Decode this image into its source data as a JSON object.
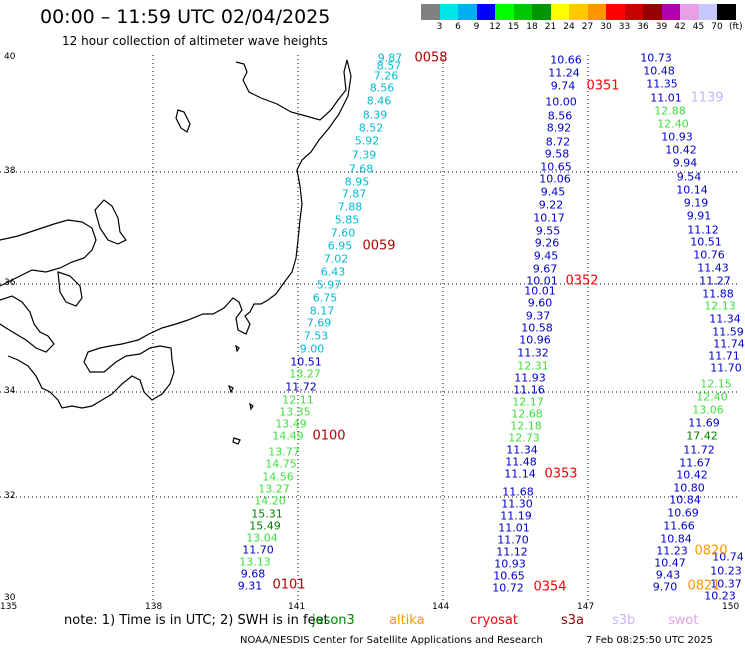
{
  "title": "00:00 – 11:59 UTC 02/04/2025",
  "subtitle": "12 hour collection of altimeter wave heights",
  "colorbar": {
    "colors": [
      "#808080",
      "#00e5e5",
      "#00b0f0",
      "#0000ff",
      "#00ff00",
      "#00c800",
      "#009600",
      "#ffff00",
      "#ffc800",
      "#ff9600",
      "#ff0000",
      "#c80000",
      "#960000",
      "#b000b0",
      "#e6a0e6",
      "#c8c8ff",
      "#000000"
    ],
    "labels": [
      "3",
      "6",
      "9",
      "12",
      "15",
      "18",
      "21",
      "24",
      "27",
      "30",
      "33",
      "36",
      "39",
      "42",
      "45",
      "70"
    ],
    "unit": "(ft)"
  },
  "axes": {
    "x_ticks": [
      "135",
      "138",
      "141",
      "144",
      "147",
      "150"
    ],
    "y_ticks": [
      "40",
      "38",
      "36",
      "34",
      "32",
      "30"
    ]
  },
  "passes": [
    {
      "id": "0058",
      "color": "#00bcd4",
      "points": [
        [
          "9.87",
          390,
          58
        ],
        [
          "8.57",
          389,
          66
        ],
        [
          "7.26",
          386,
          76
        ],
        [
          "8.56",
          382,
          88
        ],
        [
          "8.46",
          379,
          101
        ],
        [
          "8.39",
          375,
          115
        ],
        [
          "8.52",
          371,
          128
        ],
        [
          "5.92",
          367,
          141
        ],
        [
          "7.39",
          364,
          155
        ],
        [
          "7.68",
          361,
          169
        ],
        [
          "8.95",
          357,
          182
        ],
        [
          "7.87",
          354,
          194
        ],
        [
          "7.88",
          350,
          207
        ],
        [
          "5.85",
          347,
          220
        ],
        [
          "7.60",
          343,
          233
        ]
      ]
    },
    {
      "id": "0059",
      "color": "#00bcd4",
      "points": [
        [
          "6.95",
          340,
          246
        ],
        [
          "7.02",
          336,
          259
        ],
        [
          "6.43",
          333,
          272
        ],
        [
          "5.97",
          329,
          285
        ],
        [
          "6.75",
          325,
          298
        ],
        [
          "8.17",
          322,
          311
        ],
        [
          "7.69",
          319,
          323
        ],
        [
          "7.53",
          316,
          336
        ],
        [
          "9.00",
          312,
          349
        ]
      ]
    },
    {
      "id": "0059b",
      "color": "#0000c8",
      "points": [
        [
          "10.51",
          306,
          362
        ]
      ]
    },
    {
      "id": "0100a",
      "color": "#40e040",
      "points": [
        [
          "13.27",
          305,
          374
        ]
      ]
    },
    {
      "id": "0100b",
      "color": "#0000c8",
      "points": [
        [
          "11.72",
          301,
          387
        ]
      ]
    },
    {
      "id": "0100",
      "color": "#40e040",
      "points": [
        [
          "12.11",
          298,
          400
        ],
        [
          "13.35",
          295,
          412
        ],
        [
          "13.49",
          291,
          424
        ],
        [
          "14.49",
          288,
          436
        ],
        [
          "13.77",
          284,
          452
        ],
        [
          "14.75",
          281,
          464
        ],
        [
          "14.56",
          278,
          477
        ],
        [
          "13.27",
          274,
          489
        ],
        [
          "14.20",
          270,
          501
        ]
      ]
    },
    {
      "id": "0101a",
      "color": "#008000",
      "points": [
        [
          "15.31",
          267,
          514
        ],
        [
          "15.49",
          265,
          526
        ]
      ]
    },
    {
      "id": "0101b",
      "color": "#40e040",
      "points": [
        [
          "13.04",
          262,
          538
        ]
      ]
    },
    {
      "id": "0101c",
      "color": "#0000c8",
      "points": [
        [
          "11.70",
          258,
          550
        ]
      ]
    },
    {
      "id": "0101d",
      "color": "#40e040",
      "points": [
        [
          "13.13",
          255,
          562
        ]
      ]
    },
    {
      "id": "0101e",
      "color": "#0000c8",
      "points": [
        [
          "9.68",
          253,
          574
        ],
        [
          "9.31",
          250,
          586
        ]
      ]
    },
    {
      "id": "0351",
      "color": "#0000c8",
      "points": [
        [
          "10.66",
          566,
          60
        ],
        [
          "11.24",
          564,
          73
        ],
        [
          "9.74",
          563,
          86
        ],
        [
          "10.00",
          561,
          102
        ],
        [
          "8.56",
          560,
          116
        ],
        [
          "8.92",
          559,
          128
        ],
        [
          "8.72",
          558,
          142
        ],
        [
          "9.58",
          557,
          154
        ],
        [
          "10.65",
          556,
          167
        ],
        [
          "10.06",
          555,
          179
        ],
        [
          "9.45",
          553,
          192
        ],
        [
          "9.22",
          551,
          205
        ],
        [
          "10.17",
          549,
          218
        ],
        [
          "9.55",
          548,
          231
        ],
        [
          "9.45",
          546,
          256
        ],
        [
          "9.26",
          547,
          243
        ],
        [
          "9.67",
          545,
          269
        ],
        [
          "10.01",
          542,
          281
        ]
      ]
    },
    {
      "id": "0352",
      "color": "#0000c8",
      "points": [
        [
          "10.01",
          540,
          291
        ],
        [
          "9.60",
          540,
          303
        ],
        [
          "9.37",
          538,
          316
        ],
        [
          "10.58",
          537,
          328
        ],
        [
          "10.96",
          535,
          340
        ],
        [
          "11.32",
          533,
          353
        ]
      ]
    },
    {
      "id": "0352g",
      "color": "#40e040",
      "points": [
        [
          "12.31",
          533,
          366
        ]
      ]
    },
    {
      "id": "0352c",
      "color": "#0000c8",
      "points": [
        [
          "11.93",
          530,
          378
        ],
        [
          "11.16",
          529,
          390
        ]
      ]
    },
    {
      "id": "0353g",
      "color": "#40e040",
      "points": [
        [
          "12.17",
          528,
          402
        ],
        [
          "12.68",
          527,
          414
        ],
        [
          "12.18",
          526,
          426
        ],
        [
          "12.73",
          524,
          438
        ]
      ]
    },
    {
      "id": "0353",
      "color": "#0000c8",
      "points": [
        [
          "11.34",
          522,
          450
        ],
        [
          "11.48",
          521,
          462
        ],
        [
          "11.14",
          520,
          474
        ],
        [
          "11.68",
          518,
          492
        ],
        [
          "11.30",
          517,
          504
        ],
        [
          "11.19",
          516,
          516
        ],
        [
          "11.01",
          514,
          528
        ],
        [
          "11.70",
          513,
          540
        ],
        [
          "11.12",
          512,
          552
        ],
        [
          "10.93",
          510,
          564
        ],
        [
          "10.65",
          509,
          576
        ],
        [
          "10.72",
          508,
          588
        ]
      ]
    },
    {
      "id": "1139",
      "color": "#0000c8",
      "points": [
        [
          "10.73",
          656,
          58
        ],
        [
          "10.48",
          659,
          71
        ],
        [
          "11.35",
          662,
          84
        ],
        [
          "11.01",
          666,
          98
        ]
      ]
    },
    {
      "id": "1139g",
      "color": "#40e040",
      "points": [
        [
          "12.88",
          670,
          111
        ],
        [
          "12.40",
          673,
          124
        ]
      ]
    },
    {
      "id": "1139b",
      "color": "#0000c8",
      "points": [
        [
          "10.93",
          677,
          137
        ],
        [
          "10.42",
          681,
          150
        ],
        [
          "9.94",
          685,
          163
        ],
        [
          "9.54",
          689,
          177
        ],
        [
          "10.14",
          692,
          190
        ],
        [
          "9.19",
          696,
          203
        ],
        [
          "9.91",
          699,
          216
        ],
        [
          "11.12",
          703,
          230
        ],
        [
          "10.51",
          706,
          242
        ],
        [
          "10.76",
          709,
          255
        ],
        [
          "11.43",
          713,
          268
        ],
        [
          "11.27",
          715,
          281
        ],
        [
          "11.88",
          718,
          294
        ]
      ]
    },
    {
      "id": "1140g",
      "color": "#40e040",
      "points": [
        [
          "12.13",
          720,
          306
        ]
      ]
    },
    {
      "id": "1140b",
      "color": "#0000c8",
      "points": [
        [
          "11.34",
          725,
          319
        ],
        [
          "11.59",
          728,
          332
        ],
        [
          "11.74",
          729,
          344
        ],
        [
          "11.71",
          724,
          356
        ],
        [
          "11.70",
          726,
          368
        ]
      ]
    },
    {
      "id": "1140c",
      "color": "#40e040",
      "points": [
        [
          "12.15",
          716,
          384
        ],
        [
          "12.40",
          712,
          397
        ],
        [
          "13.06",
          708,
          410
        ]
      ]
    },
    {
      "id": "1140d",
      "color": "#0000c8",
      "points": [
        [
          "11.69",
          704,
          423
        ]
      ]
    },
    {
      "id": "1140e",
      "color": "#008000",
      "points": [
        [
          "17.42",
          702,
          436
        ]
      ]
    },
    {
      "id": "1140f",
      "color": "#0000c8",
      "points": [
        [
          "11.72",
          699,
          450
        ],
        [
          "11.67",
          695,
          463
        ],
        [
          "10.42",
          692,
          475
        ],
        [
          "10.80",
          689,
          488
        ],
        [
          "10.84",
          685,
          500
        ],
        [
          "10.69",
          683,
          513
        ],
        [
          "11.66",
          679,
          526
        ],
        [
          "10.84",
          676,
          539
        ],
        [
          "11.23",
          672,
          551
        ],
        [
          "10.47",
          670,
          563
        ],
        [
          "9.43",
          668,
          575
        ],
        [
          "9.70",
          665,
          587
        ],
        [
          "10.74",
          728,
          557
        ],
        [
          "10.23",
          726,
          571
        ],
        [
          "10.37",
          726,
          584
        ],
        [
          "10.23",
          720,
          596
        ]
      ]
    }
  ],
  "pass_labels": [
    {
      "text": "0058",
      "color": "#b00000"
    },
    {
      "text": "0059",
      "color": "#b00000"
    },
    {
      "text": "0100",
      "color": "#b00000"
    },
    {
      "text": "0101",
      "color": "#b00000"
    },
    {
      "text": "0351",
      "color": "#ff0000"
    },
    {
      "text": "0352",
      "color": "#ff0000"
    },
    {
      "text": "0353",
      "color": "#ff0000"
    },
    {
      "text": "0354",
      "color": "#ff0000"
    },
    {
      "text": "1139",
      "color": "#c8b4ff"
    },
    {
      "text": "0820",
      "color": "#ff9600"
    },
    {
      "text": "0821",
      "color": "#ff9600"
    }
  ],
  "note": "note: 1) Time is in UTC; 2) SWH is in feet",
  "satellites": [
    {
      "name": "jason3",
      "color": "#008000"
    },
    {
      "name": "altika",
      "color": "#ff9600"
    },
    {
      "name": "cryosat",
      "color": "#ff0000"
    },
    {
      "name": "s3a",
      "color": "#960000"
    },
    {
      "name": "s3b",
      "color": "#c8b4ff"
    },
    {
      "name": "swot",
      "color": "#e6a0e6"
    }
  ],
  "credit": "NOAA/NESDIS Center for Satellite Applications and Research",
  "timestamp": "7 Feb 08:25:50 UTC 2025"
}
